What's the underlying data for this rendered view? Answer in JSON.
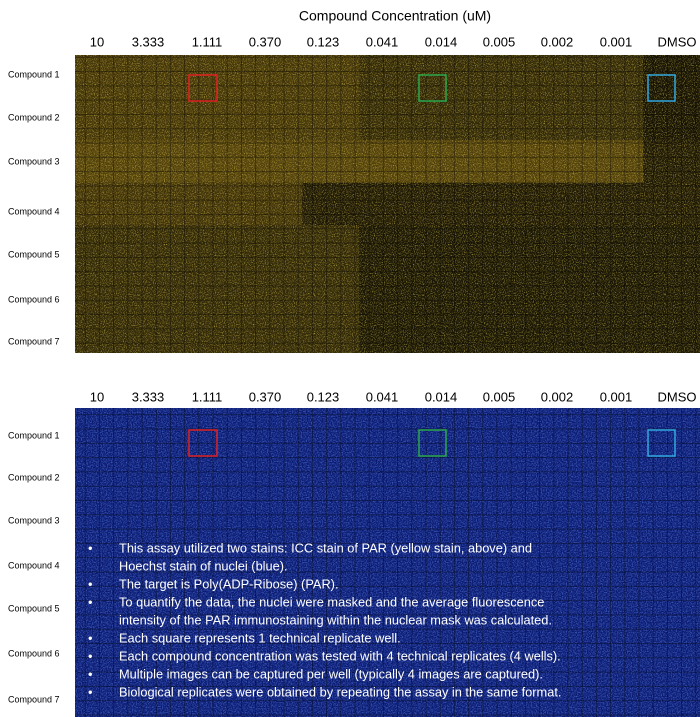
{
  "title": "Compound Concentration (uM)",
  "panels": [
    {
      "columns": [
        "10",
        "3.333",
        "1.111",
        "0.370",
        "0.123",
        "0.041",
        "0.014",
        "0.005",
        "0.002",
        "0.001",
        "DMSO"
      ],
      "rows": [
        "Compound 1",
        "Compound 2",
        "Compound 3",
        "Compound 4",
        "Compound 5",
        "Compound 6",
        "Compound 7"
      ]
    },
    {
      "columns": [
        "10",
        "3.333",
        "1.111",
        "0.370",
        "0.123",
        "0.041",
        "0.014",
        "0.005",
        "0.002",
        "0.001",
        "DMSO"
      ],
      "rows": [
        "Compound 1",
        "Compound 2",
        "Compound 3",
        "Compound 4",
        "Compound 5",
        "Compound 6",
        "Compound 7"
      ],
      "notes": [
        [
          "This assay utilized two stains: ICC stain of PAR (yellow stain, above) and",
          "Hoechst stain of nuclei (blue)."
        ],
        [
          "The target is Poly(ADP-Ribose) (PAR)."
        ],
        [
          "To quantify the data, the nuclei were masked and the average fluorescence",
          "intensity of the PAR immunostaining within the nuclear mask was calculated."
        ],
        [
          "Each square represents 1 technical replicate well."
        ],
        [
          "Each compound concentration was tested with 4 technical replicates (4 wells)."
        ],
        [
          "Multiple images can be captured per well (typically 4 images are captured)."
        ],
        [
          "Biological replicates were obtained by repeating the assay in the same format."
        ]
      ]
    }
  ]
}
